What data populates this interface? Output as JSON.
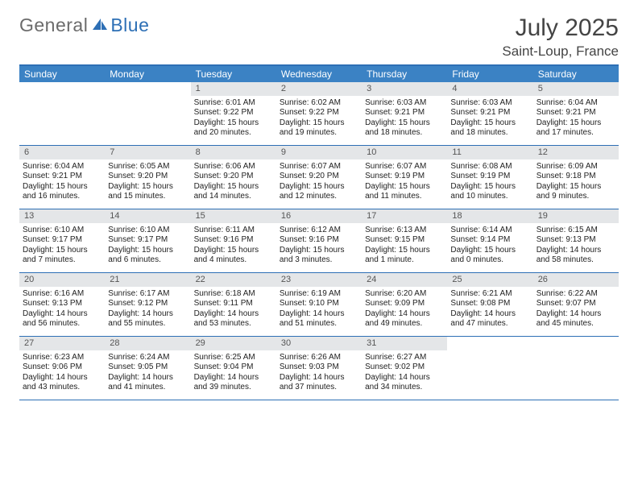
{
  "logo": {
    "text1": "General",
    "text2": "Blue"
  },
  "title": "July 2025",
  "location": "Saint-Loup, France",
  "dayHeaders": [
    "Sunday",
    "Monday",
    "Tuesday",
    "Wednesday",
    "Thursday",
    "Friday",
    "Saturday"
  ],
  "colors": {
    "headerBar": "#3b82c4",
    "ruleLine": "#2d6fb5",
    "dayNumBg": "#e4e6e8",
    "logoGray": "#6b6b6b",
    "logoBlue": "#2d6fb5"
  },
  "weeks": [
    [
      null,
      null,
      {
        "n": "1",
        "sr": "6:01 AM",
        "ss": "9:22 PM",
        "dl": "15 hours and 20 minutes."
      },
      {
        "n": "2",
        "sr": "6:02 AM",
        "ss": "9:22 PM",
        "dl": "15 hours and 19 minutes."
      },
      {
        "n": "3",
        "sr": "6:03 AM",
        "ss": "9:21 PM",
        "dl": "15 hours and 18 minutes."
      },
      {
        "n": "4",
        "sr": "6:03 AM",
        "ss": "9:21 PM",
        "dl": "15 hours and 18 minutes."
      },
      {
        "n": "5",
        "sr": "6:04 AM",
        "ss": "9:21 PM",
        "dl": "15 hours and 17 minutes."
      }
    ],
    [
      {
        "n": "6",
        "sr": "6:04 AM",
        "ss": "9:21 PM",
        "dl": "15 hours and 16 minutes."
      },
      {
        "n": "7",
        "sr": "6:05 AM",
        "ss": "9:20 PM",
        "dl": "15 hours and 15 minutes."
      },
      {
        "n": "8",
        "sr": "6:06 AM",
        "ss": "9:20 PM",
        "dl": "15 hours and 14 minutes."
      },
      {
        "n": "9",
        "sr": "6:07 AM",
        "ss": "9:20 PM",
        "dl": "15 hours and 12 minutes."
      },
      {
        "n": "10",
        "sr": "6:07 AM",
        "ss": "9:19 PM",
        "dl": "15 hours and 11 minutes."
      },
      {
        "n": "11",
        "sr": "6:08 AM",
        "ss": "9:19 PM",
        "dl": "15 hours and 10 minutes."
      },
      {
        "n": "12",
        "sr": "6:09 AM",
        "ss": "9:18 PM",
        "dl": "15 hours and 9 minutes."
      }
    ],
    [
      {
        "n": "13",
        "sr": "6:10 AM",
        "ss": "9:17 PM",
        "dl": "15 hours and 7 minutes."
      },
      {
        "n": "14",
        "sr": "6:10 AM",
        "ss": "9:17 PM",
        "dl": "15 hours and 6 minutes."
      },
      {
        "n": "15",
        "sr": "6:11 AM",
        "ss": "9:16 PM",
        "dl": "15 hours and 4 minutes."
      },
      {
        "n": "16",
        "sr": "6:12 AM",
        "ss": "9:16 PM",
        "dl": "15 hours and 3 minutes."
      },
      {
        "n": "17",
        "sr": "6:13 AM",
        "ss": "9:15 PM",
        "dl": "15 hours and 1 minute."
      },
      {
        "n": "18",
        "sr": "6:14 AM",
        "ss": "9:14 PM",
        "dl": "15 hours and 0 minutes."
      },
      {
        "n": "19",
        "sr": "6:15 AM",
        "ss": "9:13 PM",
        "dl": "14 hours and 58 minutes."
      }
    ],
    [
      {
        "n": "20",
        "sr": "6:16 AM",
        "ss": "9:13 PM",
        "dl": "14 hours and 56 minutes."
      },
      {
        "n": "21",
        "sr": "6:17 AM",
        "ss": "9:12 PM",
        "dl": "14 hours and 55 minutes."
      },
      {
        "n": "22",
        "sr": "6:18 AM",
        "ss": "9:11 PM",
        "dl": "14 hours and 53 minutes."
      },
      {
        "n": "23",
        "sr": "6:19 AM",
        "ss": "9:10 PM",
        "dl": "14 hours and 51 minutes."
      },
      {
        "n": "24",
        "sr": "6:20 AM",
        "ss": "9:09 PM",
        "dl": "14 hours and 49 minutes."
      },
      {
        "n": "25",
        "sr": "6:21 AM",
        "ss": "9:08 PM",
        "dl": "14 hours and 47 minutes."
      },
      {
        "n": "26",
        "sr": "6:22 AM",
        "ss": "9:07 PM",
        "dl": "14 hours and 45 minutes."
      }
    ],
    [
      {
        "n": "27",
        "sr": "6:23 AM",
        "ss": "9:06 PM",
        "dl": "14 hours and 43 minutes."
      },
      {
        "n": "28",
        "sr": "6:24 AM",
        "ss": "9:05 PM",
        "dl": "14 hours and 41 minutes."
      },
      {
        "n": "29",
        "sr": "6:25 AM",
        "ss": "9:04 PM",
        "dl": "14 hours and 39 minutes."
      },
      {
        "n": "30",
        "sr": "6:26 AM",
        "ss": "9:03 PM",
        "dl": "14 hours and 37 minutes."
      },
      {
        "n": "31",
        "sr": "6:27 AM",
        "ss": "9:02 PM",
        "dl": "14 hours and 34 minutes."
      },
      null,
      null
    ]
  ],
  "labels": {
    "sunrise": "Sunrise: ",
    "sunset": "Sunset: ",
    "daylight": "Daylight: "
  }
}
